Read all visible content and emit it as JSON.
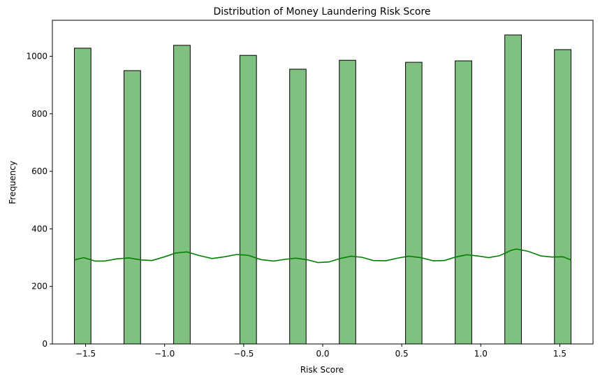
{
  "chart_data": {
    "type": "bar",
    "title": "Distribution of Money Laundering Risk Score",
    "xlabel": "Risk Score",
    "ylabel": "Frequency",
    "xlim": [
      -1.71,
      1.71
    ],
    "ylim": [
      0,
      1125
    ],
    "xticks": [
      -1.5,
      -1.0,
      -0.5,
      0.0,
      0.5,
      1.0,
      1.5
    ],
    "xtick_labels": [
      "−1.5",
      "−1.0",
      "−0.5",
      "0.0",
      "0.5",
      "1.0",
      "1.5"
    ],
    "yticks": [
      0,
      200,
      400,
      600,
      800,
      1000
    ],
    "ytick_labels": [
      "0",
      "200",
      "400",
      "600",
      "800",
      "1000"
    ],
    "bins": [
      {
        "x0": -1.571,
        "x1": -1.466,
        "value": 1028
      },
      {
        "x0": -1.257,
        "x1": -1.152,
        "value": 950
      },
      {
        "x0": -0.943,
        "x1": -0.838,
        "value": 1038
      },
      {
        "x0": -0.524,
        "x1": -0.419,
        "value": 1003
      },
      {
        "x0": -0.209,
        "x1": -0.105,
        "value": 955
      },
      {
        "x0": 0.105,
        "x1": 0.209,
        "value": 986
      },
      {
        "x0": 0.524,
        "x1": 0.628,
        "value": 979
      },
      {
        "x0": 0.838,
        "x1": 0.943,
        "value": 984
      },
      {
        "x0": 1.152,
        "x1": 1.257,
        "value": 1074
      },
      {
        "x0": 1.466,
        "x1": 1.571,
        "value": 1023
      }
    ],
    "kde": {
      "x": [
        -1.571,
        -1.512,
        -1.44,
        -1.38,
        -1.3,
        -1.225,
        -1.15,
        -1.08,
        -1.0,
        -0.93,
        -0.86,
        -0.78,
        -0.7,
        -0.62,
        -0.545,
        -0.47,
        -0.39,
        -0.31,
        -0.24,
        -0.17,
        -0.1,
        -0.03,
        0.04,
        0.11,
        0.18,
        0.25,
        0.32,
        0.4,
        0.47,
        0.545,
        0.62,
        0.7,
        0.77,
        0.84,
        0.91,
        0.98,
        1.05,
        1.12,
        1.19,
        1.225,
        1.3,
        1.38,
        1.45,
        1.52,
        1.571
      ],
      "y": [
        292,
        300,
        288,
        288,
        296,
        299,
        292,
        290,
        303,
        316,
        320,
        307,
        297,
        303,
        311,
        308,
        293,
        288,
        294,
        298,
        293,
        283,
        285,
        297,
        305,
        301,
        290,
        289,
        298,
        305,
        300,
        289,
        290,
        302,
        310,
        306,
        300,
        307,
        325,
        330,
        322,
        306,
        302,
        303,
        292
      ]
    },
    "bar_fill": "#80c080",
    "bar_edge": "#000000",
    "line_color": "#008000",
    "grid": false,
    "legend": "none"
  }
}
